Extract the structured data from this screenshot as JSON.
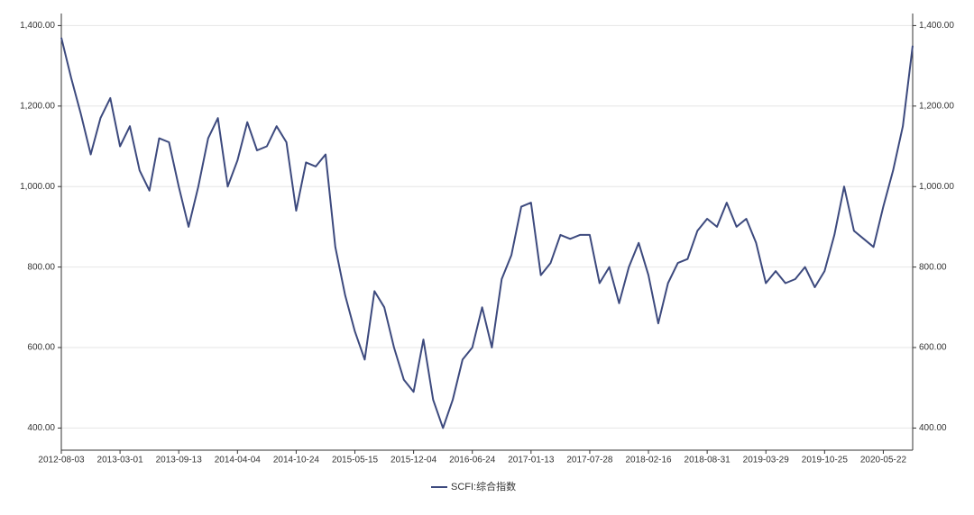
{
  "chart_data": {
    "type": "line",
    "categories": [
      "2012-08-03",
      null,
      null,
      null,
      null,
      null,
      "2013-03-01",
      null,
      null,
      null,
      null,
      null,
      "2013-09-13",
      null,
      null,
      null,
      null,
      null,
      "2014-04-04",
      null,
      null,
      null,
      null,
      null,
      "2014-10-24",
      null,
      null,
      null,
      null,
      null,
      "2015-05-15",
      null,
      null,
      null,
      null,
      null,
      "2015-12-04",
      null,
      null,
      null,
      null,
      null,
      "2016-06-24",
      null,
      null,
      null,
      null,
      null,
      "2017-01-13",
      null,
      null,
      null,
      null,
      null,
      "2017-07-28",
      null,
      null,
      null,
      null,
      null,
      "2018-02-16",
      null,
      null,
      null,
      null,
      null,
      "2018-08-31",
      null,
      null,
      null,
      null,
      null,
      "2019-03-29",
      null,
      null,
      null,
      null,
      null,
      "2019-10-25",
      null,
      null,
      null,
      null,
      null,
      "2020-05-22",
      null,
      null,
      null
    ],
    "series": [
      {
        "name": "SCFI:综合指数",
        "color": "#3d4a7e",
        "values": [
          1370,
          1270,
          1180,
          1080,
          1170,
          1220,
          1100,
          1150,
          1040,
          990,
          1120,
          1110,
          1000,
          900,
          1000,
          1120,
          1170,
          1000,
          1065,
          1160,
          1090,
          1100,
          1150,
          1110,
          940,
          1060,
          1050,
          1080,
          850,
          730,
          640,
          570,
          740,
          700,
          600,
          520,
          490,
          620,
          470,
          400,
          470,
          570,
          600,
          700,
          600,
          770,
          830,
          950,
          960,
          780,
          810,
          880,
          870,
          880,
          880,
          760,
          800,
          710,
          800,
          860,
          780,
          660,
          760,
          810,
          820,
          890,
          920,
          900,
          960,
          900,
          920,
          860,
          760,
          790,
          760,
          770,
          800,
          750,
          790,
          880,
          1000,
          890,
          870,
          850,
          950,
          1040,
          1150,
          1350
        ]
      }
    ],
    "ylim": [
      345,
      1430
    ],
    "yticks": [
      {
        "value": 400,
        "label": "400.00"
      },
      {
        "value": 600,
        "label": "600.00"
      },
      {
        "value": 800,
        "label": "800.00"
      },
      {
        "value": 1000,
        "label": "1,000.00"
      },
      {
        "value": 1200,
        "label": "1,200.00"
      },
      {
        "value": 1400,
        "label": "1,400.00"
      }
    ],
    "y2lim": [
      345,
      1430
    ],
    "y2ticks": [
      {
        "value": 400,
        "label": "400.00"
      },
      {
        "value": 600,
        "label": "600.00"
      },
      {
        "value": 800,
        "label": "800.00"
      },
      {
        "value": 1000,
        "label": "1,000.00"
      },
      {
        "value": 1200,
        "label": "1,200.00"
      },
      {
        "value": 1400,
        "label": "1,400.00"
      }
    ],
    "grid": true,
    "legend": "bottom"
  }
}
